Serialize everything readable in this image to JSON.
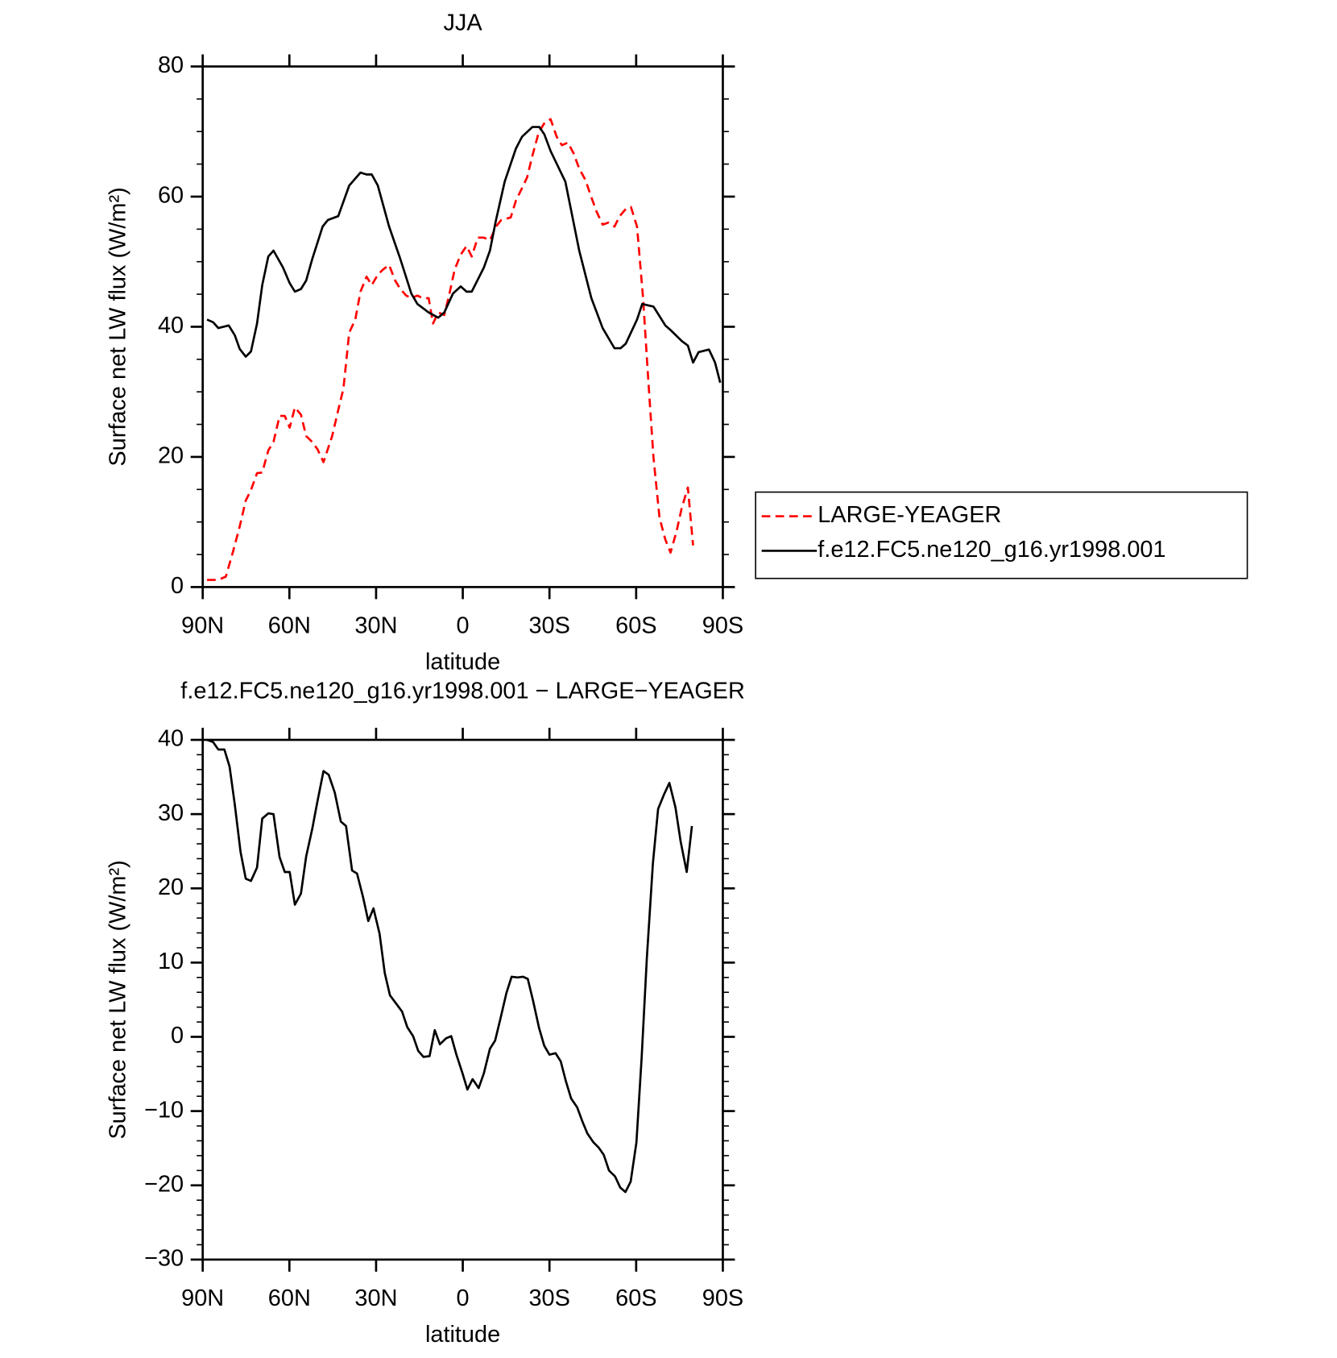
{
  "chart_data": [
    {
      "type": "line",
      "title": "JJA",
      "xlabel": "latitude",
      "ylabel": "Surface net LW flux (W/m²)",
      "xlim": [
        90,
        -90
      ],
      "xticks": [
        {
          "value": 90,
          "label": "90N"
        },
        {
          "value": 60,
          "label": "60N"
        },
        {
          "value": 30,
          "label": "30N"
        },
        0,
        {
          "value": -30,
          "label": "30S"
        },
        {
          "value": -60,
          "label": "60S"
        },
        {
          "value": -90,
          "label": "90S"
        }
      ],
      "ylim": [
        0,
        80
      ],
      "yticks": [
        0,
        20,
        40,
        60,
        80
      ],
      "yminorticks": [
        5,
        10,
        15,
        25,
        30,
        35,
        45,
        50,
        55,
        65,
        70,
        75
      ],
      "legend": "outside-right",
      "series": [
        {
          "name": "LARGE-YEAGER",
          "color": "#ff0000",
          "linestyle": "dashed",
          "x": [
            88.5,
            84.6,
            82,
            79.6,
            77.2,
            75.1,
            73.3,
            71.2,
            69.4,
            67.3,
            65.5,
            63.4,
            61.6,
            59.9,
            58.1,
            56,
            54.2,
            52.1,
            50.3,
            48.2,
            45.2,
            43.1,
            41.3,
            39.3,
            37.2,
            35.4,
            33.3,
            31.5,
            29.4,
            27.6,
            25.5,
            23.4,
            21.6,
            19.6,
            17.8,
            15.7,
            13.9,
            11.8,
            10.3,
            8.5,
            6.4,
            4.6,
            2.8,
            0.7,
            -1.3,
            -3.1,
            -5.2,
            -7.3,
            -9.4,
            -11.5,
            -13.3,
            -16.6,
            -18.4,
            -20.5,
            -22.3,
            -24.1,
            -26.3,
            -28.4,
            -30.4,
            -32.5,
            -34.3,
            -36.4,
            -38.4,
            -40.3,
            -42.4,
            -44.5,
            -46.3,
            -48.4,
            -50.4,
            -52.5,
            -54.3,
            -56.4,
            -58.2,
            -60.3,
            -62.4,
            -64.2,
            -66,
            -68.1,
            -70.1,
            -71.9,
            -74,
            -75.8,
            -77.9,
            -79.7
          ],
          "values": [
            1.1,
            1.1,
            1.6,
            5.3,
            9.3,
            13.3,
            14.9,
            17.5,
            17.6,
            21,
            22.3,
            26.3,
            26.3,
            24.5,
            27.6,
            26.5,
            23.2,
            22.3,
            21.2,
            19.2,
            23.2,
            27.2,
            30.5,
            39.1,
            41.1,
            45.4,
            47.7,
            46.4,
            48,
            48.8,
            49.5,
            47.1,
            45.8,
            44.8,
            44.4,
            44.8,
            44.4,
            44.4,
            40.5,
            42.2,
            41.8,
            45.1,
            48.8,
            51.1,
            52.4,
            50.8,
            53.7,
            53.7,
            53.3,
            55.4,
            56.4,
            56.8,
            59.4,
            61.3,
            63,
            66.3,
            69.9,
            71.4,
            71.9,
            69.2,
            67.9,
            68.3,
            66.6,
            64.3,
            62.6,
            59.9,
            57.7,
            55.7,
            56,
            55.4,
            57,
            58.1,
            58.4,
            55.4,
            44.4,
            31.8,
            19.9,
            10.6,
            7.3,
            5.3,
            8.6,
            12.2,
            15.3,
            6.4
          ]
        },
        {
          "name": "f.e12.FC5.ne120_g16.yr1998.001",
          "color": "#000000",
          "linestyle": "solid",
          "x": [
            88.5,
            86.4,
            84.6,
            81,
            78.9,
            77.2,
            75.1,
            73.3,
            71.2,
            69.4,
            67.3,
            65.5,
            62.2,
            59.9,
            58.1,
            56,
            54.2,
            52.1,
            48.5,
            46.7,
            43.1,
            39.3,
            35.4,
            33.3,
            31.5,
            29.4,
            25.5,
            21.6,
            17.8,
            15.7,
            11.8,
            8.5,
            6.4,
            3.4,
            0.7,
            -1.3,
            -3.1,
            -7.3,
            -9.4,
            -11.5,
            -14.5,
            -18.4,
            -20.5,
            -24.1,
            -26.5,
            -28.2,
            -30.4,
            -35.5,
            -40.3,
            -44.5,
            -48.4,
            -52.5,
            -54.6,
            -56.4,
            -60.3,
            -62.1,
            -66,
            -70.1,
            -71.9,
            -75.8,
            -77.9,
            -79.7,
            -81.6,
            -85.2,
            -87.3,
            -89.1
          ],
          "values": [
            41.1,
            40.7,
            39.8,
            40.2,
            38.7,
            36.6,
            35.4,
            36.2,
            40.5,
            46.4,
            50.8,
            51.7,
            49.1,
            46.7,
            45.4,
            45.8,
            47.1,
            50.4,
            55.4,
            56.4,
            57,
            61.7,
            63.7,
            63.4,
            63.4,
            61.7,
            55.4,
            50.4,
            45.1,
            43.5,
            42.2,
            41.4,
            42.2,
            45.1,
            46.2,
            45.4,
            45.4,
            49.1,
            51.7,
            56.4,
            62.3,
            67.4,
            69.2,
            70.7,
            70.7,
            69.6,
            67,
            62.3,
            51.7,
            44.4,
            39.8,
            36.7,
            36.7,
            37.4,
            41.1,
            43.5,
            43.1,
            40.2,
            39.5,
            37.8,
            37.1,
            34.5,
            36.1,
            36.5,
            34.5,
            31.4
          ]
        }
      ]
    },
    {
      "type": "line",
      "title": "f.e12.FC5.ne120_g16.yr1998.001 − LARGE−YEAGER",
      "xlabel": "latitude",
      "ylabel": "Surface net LW flux (W/m²)",
      "xlim": [
        90,
        -90
      ],
      "xticks": [
        {
          "value": 90,
          "label": "90N"
        },
        {
          "value": 60,
          "label": "60N"
        },
        {
          "value": 30,
          "label": "30N"
        },
        0,
        {
          "value": -30,
          "label": "30S"
        },
        {
          "value": -60,
          "label": "60S"
        },
        {
          "value": -90,
          "label": "90S"
        }
      ],
      "ylim": [
        -30,
        40
      ],
      "yticks": [
        {
          "value": -30,
          "label": "−30"
        },
        {
          "value": -20,
          "label": "−20"
        },
        {
          "value": -10,
          "label": "−10"
        },
        0,
        10,
        20,
        30,
        40
      ],
      "yminorticks": [
        -28,
        -26,
        -24,
        -22,
        -18,
        -16,
        -14,
        -12,
        -8,
        -6,
        -4,
        -2,
        2,
        4,
        6,
        8,
        12,
        14,
        16,
        18,
        22,
        24,
        26,
        28,
        32,
        34,
        36,
        38
      ],
      "series": [
        {
          "color": "#000000",
          "linestyle": "solid",
          "x": [
            88.5,
            86.4,
            84.6,
            82.5,
            80.7,
            78.9,
            76.9,
            75.1,
            73.3,
            71.2,
            69.4,
            67.3,
            65.5,
            63.4,
            61.6,
            59.9,
            58.1,
            56,
            54.2,
            52.1,
            50.3,
            48.2,
            46.4,
            44.3,
            42.2,
            40.4,
            38.3,
            36.6,
            34.5,
            32.7,
            30.9,
            28.8,
            27,
            25.2,
            23.1,
            21,
            19.2,
            17.2,
            15.4,
            13.6,
            11.5,
            9.7,
            7.9,
            5.8,
            4,
            2.2,
            0.1,
            -1.6,
            -3.4,
            -5.5,
            -7.3,
            -9.4,
            -11.2,
            -13,
            -15.1,
            -16.9,
            -19,
            -20.8,
            -22.5,
            -24.3,
            -26.4,
            -28.2,
            -30,
            -32.1,
            -33.9,
            -35.7,
            -37.5,
            -39.6,
            -41.4,
            -43.1,
            -45.2,
            -47,
            -48.8,
            -50.6,
            -52.7,
            -54.5,
            -56.3,
            -58.1,
            -60.1,
            -61.9,
            -63.7,
            -65.8,
            -67.6,
            -69.7,
            -71.5,
            -73.6,
            -75.4,
            -77.5,
            -79.3
          ],
          "values": [
            40,
            39.7,
            38.7,
            38.7,
            36.4,
            31.3,
            24.9,
            21.3,
            21,
            22.8,
            29.4,
            30.1,
            30,
            24.2,
            22.2,
            22.2,
            17.8,
            19.3,
            24.3,
            28,
            31.7,
            35.8,
            35.3,
            32.9,
            29,
            28.4,
            22.4,
            22,
            18.8,
            15.6,
            17.3,
            13.9,
            8.6,
            5.6,
            4.5,
            3.4,
            1.3,
            0.1,
            -1.9,
            -2.7,
            -2.6,
            0.9,
            -1,
            -0.2,
            0.1,
            -2.4,
            -4.9,
            -7.1,
            -5.7,
            -6.9,
            -4.9,
            -1.6,
            -0.5,
            2.4,
            5.9,
            8.1,
            8,
            8.1,
            7.8,
            4.9,
            1.2,
            -1.2,
            -2.4,
            -2.2,
            -3.3,
            -6,
            -8.3,
            -9.5,
            -11.4,
            -13,
            -14.2,
            -14.9,
            -15.9,
            -18,
            -18.8,
            -20.3,
            -20.9,
            -19.5,
            -14.2,
            -2.8,
            10.6,
            23.4,
            30.7,
            32.7,
            34.2,
            30.9,
            26.3,
            22.2,
            28.4
          ]
        }
      ]
    }
  ]
}
